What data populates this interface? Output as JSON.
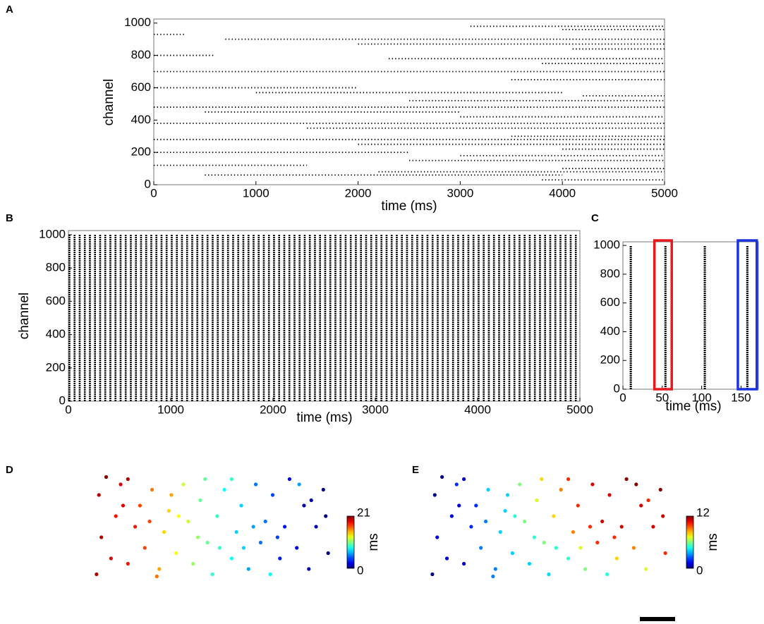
{
  "chart_data": [
    {
      "type": "raster",
      "panel_label": "A",
      "xlabel": "time (ms)",
      "ylabel": "channel",
      "xlim": [
        0,
        5000
      ],
      "ylim": [
        0,
        1025
      ],
      "xticks": [
        0,
        1000,
        2000,
        3000,
        4000,
        5000
      ],
      "yticks": [
        0,
        200,
        400,
        600,
        800,
        1000
      ],
      "color": "#000000",
      "channels": [
        980,
        960,
        930,
        900,
        870,
        840,
        800,
        780,
        750,
        700,
        650,
        600,
        570,
        550,
        520,
        480,
        450,
        420,
        380,
        350,
        300,
        280,
        250,
        220,
        200,
        180,
        150,
        120,
        100,
        80,
        60,
        30
      ],
      "starts": [
        3100,
        4000,
        0,
        700,
        2000,
        4100,
        0,
        2300,
        3800,
        0,
        3500,
        0,
        1000,
        4200,
        2500,
        0,
        500,
        3000,
        0,
        1500,
        3500,
        0,
        2000,
        4000,
        0,
        3000,
        2500,
        0,
        4000,
        2200,
        500,
        3800
      ],
      "ends": [
        5000,
        5000,
        300,
        5000,
        5000,
        5000,
        600,
        5000,
        5000,
        5000,
        5000,
        2000,
        4000,
        5000,
        5000,
        5000,
        3000,
        5000,
        5000,
        5000,
        5000,
        5000,
        5000,
        5000,
        2500,
        5000,
        5000,
        1500,
        5000,
        5000,
        4000,
        5000
      ]
    },
    {
      "type": "bursts",
      "panel_label": "B",
      "xlabel": "time (ms)",
      "ylabel": "channel",
      "xlim": [
        0,
        5000
      ],
      "ylim": [
        0,
        1025
      ],
      "xticks": [
        0,
        1000,
        2000,
        3000,
        4000,
        5000
      ],
      "yticks": [
        0,
        200,
        400,
        600,
        800,
        1000
      ],
      "color": "#000000",
      "burst_height": [
        0,
        1000
      ],
      "bursts": [
        10,
        60,
        110,
        160,
        210,
        260,
        310,
        360,
        410,
        460,
        510,
        560,
        610,
        660,
        710,
        760,
        810,
        860,
        910,
        960,
        1010,
        1060,
        1110,
        1160,
        1210,
        1260,
        1310,
        1360,
        1410,
        1460,
        1510,
        1560,
        1610,
        1660,
        1710,
        1760,
        1810,
        1860,
        1910,
        1960,
        2010,
        2060,
        2110,
        2160,
        2210,
        2260,
        2310,
        2360,
        2410,
        2460,
        2510,
        2560,
        2610,
        2660,
        2710,
        2760,
        2810,
        2860,
        2910,
        2960,
        3010,
        3060,
        3110,
        3160,
        3210,
        3260,
        3310,
        3360,
        3410,
        3460,
        3510,
        3560,
        3610,
        3660,
        3710,
        3760,
        3810,
        3860,
        3910,
        3960,
        4010,
        4060,
        4110,
        4160,
        4210,
        4260,
        4310,
        4360,
        4410,
        4460,
        4510,
        4560,
        4610,
        4660,
        4710,
        4760,
        4810,
        4860,
        4910,
        4960
      ]
    },
    {
      "type": "bursts",
      "panel_label": "C",
      "xlabel": "time (ms)",
      "xlim": [
        0,
        172
      ],
      "ylim": [
        0,
        1025
      ],
      "xticks": [
        0,
        50,
        100,
        150
      ],
      "yticks": [
        0,
        200,
        400,
        600,
        800,
        1000
      ],
      "color": "#000000",
      "burst_height": [
        0,
        1000
      ],
      "bursts": [
        10,
        54,
        104,
        158
      ],
      "highlights": [
        {
          "xlim": [
            40,
            62
          ],
          "color": "#e8191d"
        },
        {
          "xlim": [
            146,
            170
          ],
          "color": "#1a32e0"
        }
      ]
    },
    {
      "type": "scatter",
      "panel_label": "D",
      "colorbar_label": "ms",
      "colormap": "jet",
      "clim": [
        0,
        21
      ],
      "cticks": [
        0,
        21
      ],
      "x": [
        2,
        8,
        4,
        10,
        3,
        12,
        15,
        18,
        20,
        22,
        25,
        28,
        30,
        32,
        35,
        38,
        40,
        42,
        45,
        48,
        50,
        52,
        55,
        58,
        60,
        62,
        65,
        68,
        70,
        72,
        75,
        78,
        80,
        82,
        85,
        88,
        90,
        93,
        96,
        98,
        15,
        24,
        44,
        58,
        74,
        86,
        6,
        13,
        27,
        36,
        47,
        63,
        77,
        91,
        97,
        33,
        53,
        67
      ],
      "y": [
        5,
        20,
        40,
        60,
        80,
        90,
        15,
        50,
        70,
        30,
        85,
        10,
        45,
        65,
        25,
        90,
        55,
        15,
        75,
        35,
        5,
        60,
        85,
        20,
        45,
        70,
        10,
        90,
        35,
        55,
        80,
        20,
        50,
        95,
        30,
        70,
        10,
        50,
        85,
        25,
        95,
        55,
        40,
        95,
        5,
        90,
        97,
        70,
        3,
        60,
        95,
        30,
        40,
        75,
        60,
        80,
        30,
        50
      ],
      "values": [
        20,
        19,
        20,
        18,
        20,
        19,
        18,
        18,
        17,
        17,
        16,
        15,
        14,
        14,
        13,
        12,
        12,
        11,
        10,
        10,
        9,
        9,
        8,
        8,
        7,
        7,
        6,
        5,
        5,
        5,
        4,
        3,
        3,
        2,
        2,
        1,
        1,
        1,
        0,
        0,
        20,
        17,
        11,
        9,
        8,
        6,
        21,
        19,
        16,
        13,
        10,
        7,
        4,
        1,
        0,
        15,
        9,
        6
      ]
    },
    {
      "type": "scatter",
      "panel_label": "E",
      "colorbar_label": "ms",
      "colormap": "jet",
      "clim": [
        0,
        12
      ],
      "cticks": [
        0,
        12
      ],
      "x": [
        2,
        8,
        4,
        10,
        3,
        12,
        15,
        18,
        20,
        22,
        25,
        28,
        30,
        32,
        35,
        38,
        40,
        42,
        45,
        48,
        50,
        52,
        55,
        58,
        60,
        62,
        65,
        68,
        70,
        72,
        75,
        78,
        80,
        82,
        85,
        88,
        90,
        93,
        96,
        98,
        15,
        24,
        44,
        58,
        74,
        86,
        6,
        13,
        27,
        36,
        47,
        63,
        77,
        91,
        97,
        33,
        53,
        67
      ],
      "y": [
        5,
        20,
        40,
        60,
        80,
        90,
        15,
        50,
        70,
        30,
        85,
        10,
        45,
        65,
        25,
        90,
        55,
        15,
        75,
        35,
        5,
        60,
        85,
        20,
        45,
        70,
        10,
        90,
        35,
        55,
        80,
        20,
        50,
        95,
        30,
        70,
        10,
        50,
        85,
        25,
        95,
        55,
        40,
        95,
        5,
        90,
        97,
        70,
        3,
        60,
        95,
        30,
        40,
        75,
        60,
        80,
        30,
        50
      ],
      "values": [
        0,
        1,
        1,
        1,
        0,
        2,
        1,
        2,
        2,
        3,
        4,
        3,
        4,
        4,
        4,
        6,
        6,
        4,
        7,
        6,
        4,
        8,
        9,
        5,
        9,
        10,
        6,
        11,
        10,
        11,
        11,
        8,
        11,
        12,
        9,
        11,
        7,
        11,
        12,
        10,
        1,
        3,
        5,
        10,
        5,
        12,
        0,
        1,
        3,
        5,
        8,
        7,
        10,
        10,
        11,
        4,
        5,
        10
      ]
    }
  ]
}
